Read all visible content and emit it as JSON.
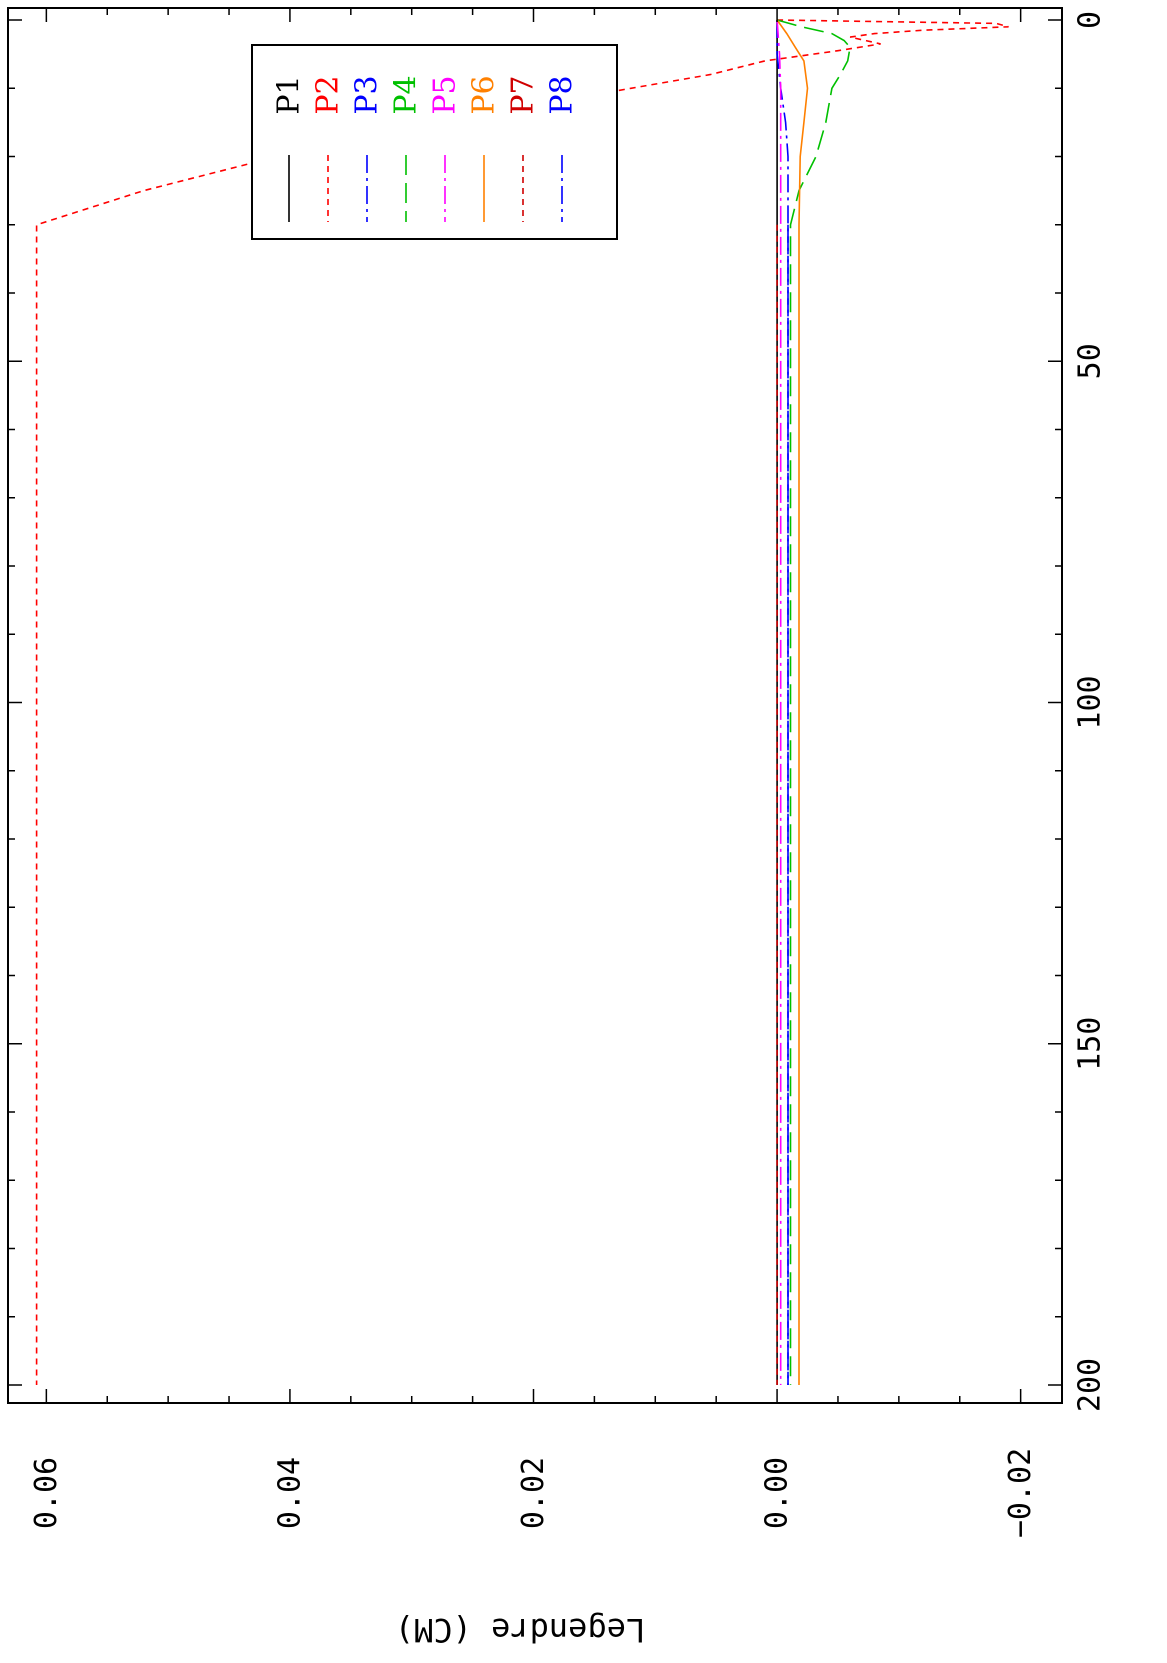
{
  "chart_data": {
    "type": "line",
    "title": "",
    "ylabel": "Legendre (CM)",
    "xlabel": "",
    "x_range": [
      0,
      200
    ],
    "y_range": [
      -0.022,
      0.062
    ],
    "x_ticks": [
      0,
      50,
      100,
      150,
      200
    ],
    "x_tick_labels": [
      "0",
      "50",
      "100",
      "150",
      "200"
    ],
    "y_ticks": [
      -0.02,
      0.0,
      0.02,
      0.04,
      0.06
    ],
    "y_tick_labels": [
      "−0.02",
      "0.00",
      "0.02",
      "0.04",
      "0.06"
    ],
    "grid": false,
    "legend_position": "top-right",
    "series": [
      {
        "name": "P1",
        "color": "#000000",
        "dash": "solid",
        "points": [
          [
            0,
            0
          ],
          [
            2,
            0
          ],
          [
            5,
            0
          ],
          [
            10,
            0
          ],
          [
            20,
            0
          ],
          [
            30,
            0
          ],
          [
            100,
            0
          ],
          [
            200,
            0
          ]
        ]
      },
      {
        "name": "P2",
        "color": "#ff0000",
        "dash": "dash",
        "points": [
          [
            0,
            0
          ],
          [
            0.5,
            -0.018
          ],
          [
            1,
            -0.019
          ],
          [
            1.5,
            -0.012
          ],
          [
            2,
            -0.008
          ],
          [
            2.5,
            -0.006
          ],
          [
            3.5,
            -0.0085
          ],
          [
            4.5,
            -0.005
          ],
          [
            6,
            0.001
          ],
          [
            8,
            0.0055
          ],
          [
            10,
            0.012
          ],
          [
            15,
            0.028
          ],
          [
            20,
            0.041
          ],
          [
            25,
            0.052
          ],
          [
            30,
            0.0608
          ],
          [
            50,
            0.0608
          ],
          [
            100,
            0.0608
          ],
          [
            150,
            0.0608
          ],
          [
            200,
            0.0608
          ]
        ]
      },
      {
        "name": "P3",
        "color": "#0000ff",
        "dash": "dashdot",
        "points": [
          [
            0,
            0
          ],
          [
            5,
            0
          ],
          [
            10,
            -0.0003
          ],
          [
            15,
            -0.0007
          ],
          [
            20,
            -0.0009
          ],
          [
            30,
            -0.0009
          ],
          [
            100,
            -0.0009
          ],
          [
            200,
            -0.0009
          ]
        ]
      },
      {
        "name": "P4",
        "color": "#00c000",
        "dash": "longdash",
        "points": [
          [
            0,
            0
          ],
          [
            1,
            -0.002
          ],
          [
            2,
            -0.0045
          ],
          [
            3,
            -0.0055
          ],
          [
            4,
            -0.006
          ],
          [
            6,
            -0.0058
          ],
          [
            8,
            -0.0052
          ],
          [
            10,
            -0.0045
          ],
          [
            15,
            -0.004
          ],
          [
            20,
            -0.0032
          ],
          [
            25,
            -0.0018
          ],
          [
            30,
            -0.0011
          ],
          [
            100,
            -0.0011
          ],
          [
            200,
            -0.0011
          ]
        ]
      },
      {
        "name": "P5",
        "color": "#ff00ff",
        "dash": "dashdot",
        "points": [
          [
            0,
            0
          ],
          [
            5,
            -0.0002
          ],
          [
            10,
            -0.0003
          ],
          [
            20,
            -0.0003
          ],
          [
            30,
            -0.0003
          ],
          [
            100,
            -0.0003
          ],
          [
            200,
            -0.0003
          ]
        ]
      },
      {
        "name": "P6",
        "color": "#ff8000",
        "dash": "solid",
        "points": [
          [
            0,
            0
          ],
          [
            2,
            -0.0008
          ],
          [
            4,
            -0.0015
          ],
          [
            6,
            -0.0022
          ],
          [
            10,
            -0.0025
          ],
          [
            15,
            -0.0022
          ],
          [
            20,
            -0.0019
          ],
          [
            30,
            -0.0018
          ],
          [
            100,
            -0.0018
          ],
          [
            200,
            -0.0018
          ]
        ]
      },
      {
        "name": "P7",
        "color": "#d00000",
        "dash": "dash",
        "points": [
          [
            30,
            0
          ],
          [
            100,
            0
          ],
          [
            200,
            0
          ]
        ]
      },
      {
        "name": "P8",
        "color": "#0000ff",
        "dash": "dashdot",
        "points": [
          [
            30,
            -0.0009
          ],
          [
            100,
            -0.0009
          ],
          [
            200,
            -0.0009
          ]
        ]
      }
    ]
  }
}
